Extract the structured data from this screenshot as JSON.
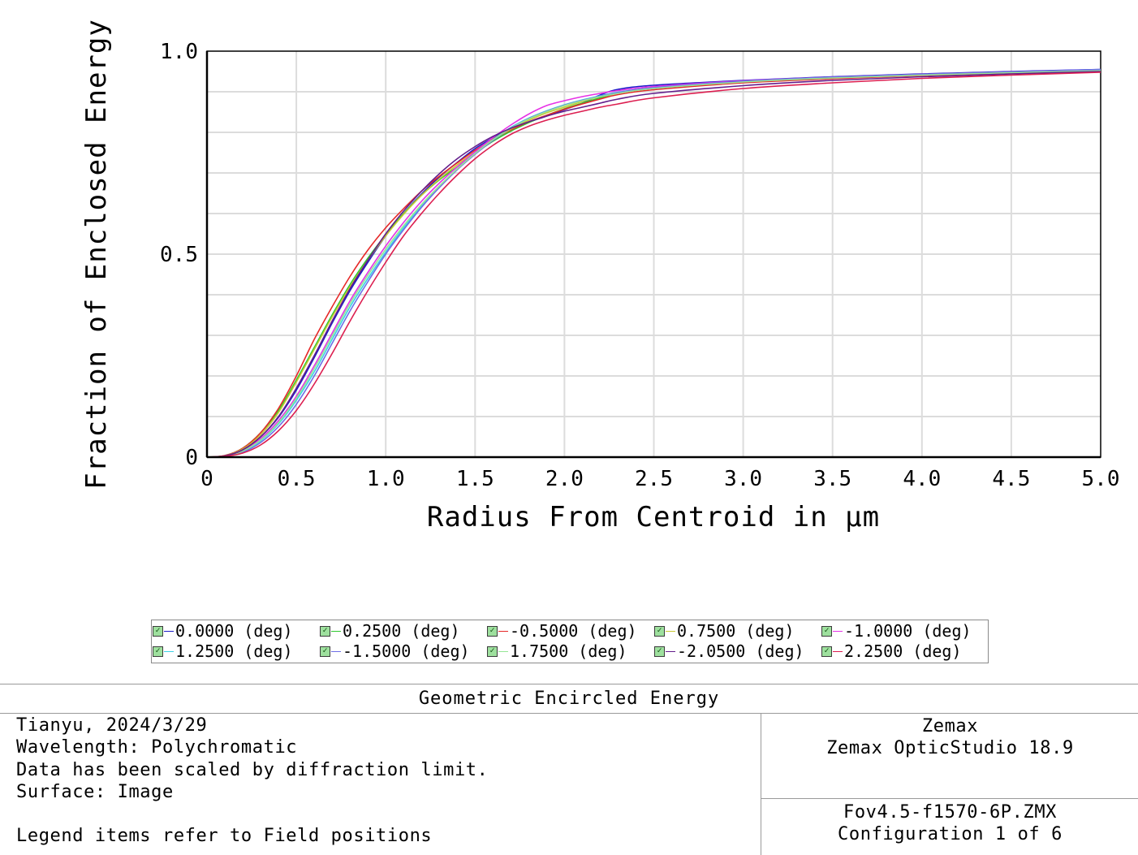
{
  "chart_data": {
    "type": "line",
    "xlabel": "Radius From Centroid in μm",
    "ylabel": "Fraction of Enclosed Energy",
    "xlim": [
      0,
      5.0
    ],
    "ylim": [
      0,
      1.0
    ],
    "x_ticks": [
      "0",
      "0.5",
      "1.0",
      "1.5",
      "2.0",
      "2.5",
      "3.0",
      "3.5",
      "4.0",
      "4.5",
      "5.0"
    ],
    "y_ticks": [
      "0",
      "0.5",
      "1.0"
    ],
    "grid": true,
    "legend_position": "bottom",
    "series": [
      {
        "name": "0.0000 (deg)",
        "color": "#1c1cc8",
        "x": [
          0,
          0.1,
          0.2,
          0.3,
          0.4,
          0.5,
          0.6,
          0.7,
          0.8,
          0.9,
          1.0,
          1.1,
          1.2,
          1.3,
          1.4,
          1.5,
          1.6,
          1.7,
          1.8,
          1.9,
          2.0,
          2.1,
          2.2,
          2.3,
          2.5,
          3.0,
          3.5,
          4.0,
          4.5,
          5.0
        ],
        "y": [
          0,
          0.003,
          0.018,
          0.05,
          0.098,
          0.165,
          0.245,
          0.33,
          0.41,
          0.48,
          0.545,
          0.6,
          0.648,
          0.69,
          0.726,
          0.76,
          0.786,
          0.808,
          0.825,
          0.84,
          0.856,
          0.872,
          0.892,
          0.906,
          0.916,
          0.928,
          0.937,
          0.944,
          0.95,
          0.955
        ]
      },
      {
        "name": "0.2500 (deg)",
        "color": "#2ec82e",
        "x": [
          0,
          0.1,
          0.2,
          0.3,
          0.4,
          0.5,
          0.6,
          0.7,
          0.8,
          0.9,
          1.0,
          1.1,
          1.2,
          1.3,
          1.4,
          1.5,
          1.6,
          1.7,
          1.8,
          1.9,
          2.0,
          2.1,
          2.2,
          2.3,
          2.5,
          3.0,
          3.5,
          4.0,
          4.5,
          5.0
        ],
        "y": [
          0,
          0.004,
          0.022,
          0.06,
          0.115,
          0.19,
          0.27,
          0.35,
          0.425,
          0.49,
          0.548,
          0.6,
          0.645,
          0.683,
          0.715,
          0.748,
          0.778,
          0.803,
          0.824,
          0.842,
          0.858,
          0.872,
          0.885,
          0.897,
          0.91,
          0.925,
          0.935,
          0.942,
          0.948,
          0.953
        ]
      },
      {
        "name": "-0.5000 (deg)",
        "color": "#e62828",
        "x": [
          0,
          0.1,
          0.2,
          0.3,
          0.4,
          0.5,
          0.6,
          0.7,
          0.8,
          0.9,
          1.0,
          1.1,
          1.2,
          1.3,
          1.4,
          1.5,
          1.6,
          1.7,
          1.8,
          1.9,
          2.0,
          2.1,
          2.2,
          2.3,
          2.5,
          3.0,
          3.5,
          4.0,
          4.5,
          5.0
        ],
        "y": [
          0,
          0.004,
          0.022,
          0.06,
          0.12,
          0.2,
          0.29,
          0.37,
          0.445,
          0.51,
          0.565,
          0.612,
          0.655,
          0.692,
          0.725,
          0.756,
          0.783,
          0.806,
          0.826,
          0.842,
          0.857,
          0.87,
          0.882,
          0.893,
          0.905,
          0.922,
          0.932,
          0.94,
          0.946,
          0.951
        ]
      },
      {
        "name": "0.7500 (deg)",
        "color": "#c8c832",
        "x": [
          0,
          0.1,
          0.2,
          0.3,
          0.4,
          0.5,
          0.6,
          0.7,
          0.8,
          0.9,
          1.0,
          1.1,
          1.2,
          1.3,
          1.4,
          1.5,
          1.6,
          1.7,
          1.8,
          1.9,
          2.0,
          2.1,
          2.2,
          2.3,
          2.5,
          3.0,
          3.5,
          4.0,
          4.5,
          5.0
        ],
        "y": [
          0,
          0.003,
          0.02,
          0.055,
          0.11,
          0.185,
          0.265,
          0.345,
          0.42,
          0.485,
          0.545,
          0.598,
          0.645,
          0.685,
          0.72,
          0.752,
          0.782,
          0.808,
          0.83,
          0.848,
          0.862,
          0.876,
          0.888,
          0.898,
          0.91,
          0.925,
          0.935,
          0.942,
          0.948,
          0.953
        ]
      },
      {
        "name": "-1.0000 (deg)",
        "color": "#e632e6",
        "x": [
          0,
          0.1,
          0.2,
          0.3,
          0.4,
          0.5,
          0.6,
          0.7,
          0.8,
          0.9,
          1.0,
          1.1,
          1.2,
          1.3,
          1.4,
          1.5,
          1.6,
          1.7,
          1.8,
          1.9,
          2.0,
          2.1,
          2.2,
          2.3,
          2.5,
          3.0,
          3.5,
          4.0,
          4.5,
          5.0
        ],
        "y": [
          0,
          0.003,
          0.016,
          0.045,
          0.09,
          0.15,
          0.225,
          0.305,
          0.385,
          0.455,
          0.52,
          0.578,
          0.63,
          0.675,
          0.715,
          0.752,
          0.787,
          0.818,
          0.845,
          0.866,
          0.878,
          0.888,
          0.896,
          0.903,
          0.913,
          0.927,
          0.936,
          0.943,
          0.949,
          0.954
        ]
      },
      {
        "name": "1.2500 (deg)",
        "color": "#3cd2e6",
        "x": [
          0,
          0.1,
          0.2,
          0.3,
          0.4,
          0.5,
          0.6,
          0.7,
          0.8,
          0.9,
          1.0,
          1.1,
          1.2,
          1.3,
          1.4,
          1.5,
          1.6,
          1.7,
          1.8,
          1.9,
          2.0,
          2.1,
          2.2,
          2.3,
          2.5,
          3.0,
          3.5,
          4.0,
          4.5,
          5.0
        ],
        "y": [
          0,
          0.002,
          0.014,
          0.04,
          0.082,
          0.14,
          0.21,
          0.29,
          0.37,
          0.44,
          0.505,
          0.565,
          0.618,
          0.666,
          0.71,
          0.748,
          0.782,
          0.812,
          0.835,
          0.853,
          0.868,
          0.88,
          0.89,
          0.899,
          0.91,
          0.925,
          0.935,
          0.942,
          0.948,
          0.953
        ]
      },
      {
        "name": "-1.5000 (deg)",
        "color": "#6e6ee6",
        "x": [
          0,
          0.1,
          0.2,
          0.3,
          0.4,
          0.5,
          0.6,
          0.7,
          0.8,
          0.9,
          1.0,
          1.1,
          1.2,
          1.3,
          1.4,
          1.5,
          1.6,
          1.7,
          1.8,
          1.9,
          2.0,
          2.1,
          2.2,
          2.3,
          2.5,
          3.0,
          3.5,
          4.0,
          4.5,
          5.0
        ],
        "y": [
          0,
          0.002,
          0.012,
          0.036,
          0.075,
          0.13,
          0.2,
          0.28,
          0.36,
          0.432,
          0.5,
          0.56,
          0.615,
          0.664,
          0.708,
          0.746,
          0.78,
          0.81,
          0.834,
          0.852,
          0.867,
          0.879,
          0.889,
          0.898,
          0.91,
          0.926,
          0.936,
          0.943,
          0.949,
          0.955
        ]
      },
      {
        "name": "1.7500 (deg)",
        "color": "#96e696",
        "x": [
          0,
          0.1,
          0.2,
          0.3,
          0.4,
          0.5,
          0.6,
          0.7,
          0.8,
          0.9,
          1.0,
          1.1,
          1.2,
          1.3,
          1.4,
          1.5,
          1.6,
          1.7,
          1.8,
          1.9,
          2.0,
          2.1,
          2.2,
          2.3,
          2.5,
          3.0,
          3.5,
          4.0,
          4.5,
          5.0
        ],
        "y": [
          0,
          0.002,
          0.015,
          0.042,
          0.085,
          0.145,
          0.218,
          0.298,
          0.378,
          0.448,
          0.512,
          0.57,
          0.622,
          0.668,
          0.71,
          0.748,
          0.782,
          0.81,
          0.833,
          0.851,
          0.866,
          0.878,
          0.888,
          0.896,
          0.908,
          0.924,
          0.934,
          0.941,
          0.947,
          0.952
        ]
      },
      {
        "name": "-2.0500 (deg)",
        "color": "#641e8c",
        "x": [
          0,
          0.1,
          0.2,
          0.3,
          0.4,
          0.5,
          0.6,
          0.7,
          0.8,
          0.9,
          1.0,
          1.1,
          1.2,
          1.3,
          1.4,
          1.5,
          1.6,
          1.7,
          1.8,
          1.9,
          2.0,
          2.1,
          2.2,
          2.3,
          2.5,
          3.0,
          3.5,
          4.0,
          4.5,
          5.0
        ],
        "y": [
          0,
          0.003,
          0.018,
          0.05,
          0.1,
          0.17,
          0.25,
          0.335,
          0.415,
          0.485,
          0.55,
          0.606,
          0.655,
          0.698,
          0.735,
          0.765,
          0.79,
          0.81,
          0.826,
          0.84,
          0.852,
          0.862,
          0.872,
          0.882,
          0.896,
          0.915,
          0.928,
          0.937,
          0.944,
          0.95
        ]
      },
      {
        "name": "2.2500 (deg)",
        "color": "#dc1e50",
        "x": [
          0,
          0.1,
          0.2,
          0.3,
          0.4,
          0.5,
          0.6,
          0.7,
          0.8,
          0.9,
          1.0,
          1.1,
          1.2,
          1.3,
          1.4,
          1.5,
          1.6,
          1.7,
          1.8,
          1.9,
          2.0,
          2.1,
          2.2,
          2.3,
          2.5,
          3.0,
          3.5,
          4.0,
          4.5,
          5.0
        ],
        "y": [
          0,
          0.002,
          0.01,
          0.03,
          0.065,
          0.115,
          0.18,
          0.255,
          0.335,
          0.41,
          0.48,
          0.545,
          0.6,
          0.65,
          0.695,
          0.735,
          0.768,
          0.795,
          0.815,
          0.83,
          0.842,
          0.852,
          0.862,
          0.87,
          0.885,
          0.908,
          0.922,
          0.933,
          0.941,
          0.948
        ]
      }
    ]
  },
  "legend": {
    "checkmark": "✓",
    "items": [
      {
        "label": "0.0000 (deg)",
        "color": "#1c1cc8"
      },
      {
        "label": "0.2500 (deg)",
        "color": "#2ec82e"
      },
      {
        "label": "-0.5000 (deg)",
        "color": "#e62828"
      },
      {
        "label": "0.7500 (deg)",
        "color": "#c8c832"
      },
      {
        "label": "-1.0000 (deg)",
        "color": "#e632e6"
      },
      {
        "label": "1.2500 (deg)",
        "color": "#3cd2e6"
      },
      {
        "label": "-1.5000 (deg)",
        "color": "#6e6ee6"
      },
      {
        "label": "1.7500 (deg)",
        "color": "#96e696"
      },
      {
        "label": "-2.0500 (deg)",
        "color": "#641e8c"
      },
      {
        "label": "2.2500 (deg)",
        "color": "#dc1e50"
      }
    ]
  },
  "info": {
    "title": "Geometric Encircled Energy",
    "left": {
      "line1": "Tianyu, 2024/3/29",
      "line2": "Wavelength: Polychromatic",
      "line3": "Data has been scaled by diffraction limit.",
      "line4": "Surface: Image",
      "line5": "",
      "line6": "Legend items refer to Field positions"
    },
    "right_top": {
      "line1": "Zemax",
      "line2": "Zemax OpticStudio 18.9"
    },
    "right_bottom": {
      "line1": "Fov4.5-f1570-6P.ZMX",
      "line2": "Configuration 1 of 6"
    }
  }
}
